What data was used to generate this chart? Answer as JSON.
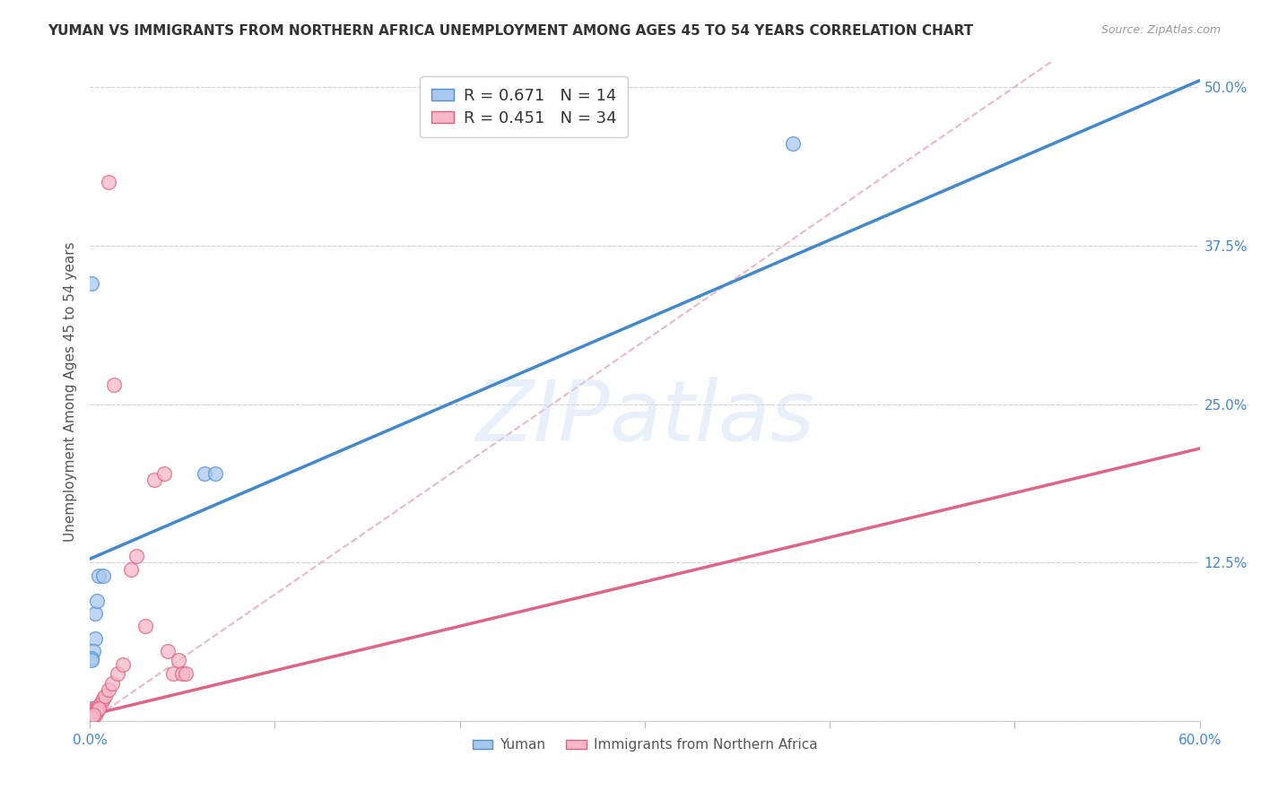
{
  "title": "YUMAN VS IMMIGRANTS FROM NORTHERN AFRICA UNEMPLOYMENT AMONG AGES 45 TO 54 YEARS CORRELATION CHART",
  "source": "Source: ZipAtlas.com",
  "ylabel": "Unemployment Among Ages 45 to 54 years",
  "xlim": [
    0.0,
    0.6
  ],
  "ylim": [
    0.0,
    0.52
  ],
  "xticks": [
    0.0,
    0.1,
    0.2,
    0.3,
    0.4,
    0.5,
    0.6
  ],
  "xticklabels": [
    "0.0%",
    "",
    "",
    "",
    "",
    "",
    "60.0%"
  ],
  "yticks": [
    0.0,
    0.125,
    0.25,
    0.375,
    0.5
  ],
  "yticklabels": [
    "",
    "12.5%",
    "25.0%",
    "37.5%",
    "50.0%"
  ],
  "grid_color": "#d0d0d0",
  "background_color": "#ffffff",
  "watermark": "ZIPatlas",
  "legend_r1": "R = 0.671",
  "legend_n1": "N = 14",
  "legend_r2": "R = 0.451",
  "legend_n2": "N = 34",
  "yuman_fill_color": "#a8c8f0",
  "immigrants_fill_color": "#f7b8c8",
  "yuman_edge_color": "#5090d0",
  "immigrants_edge_color": "#e06080",
  "yuman_line_color": "#4488cc",
  "immigrants_line_color": "#dd6688",
  "diagonal_color": "#e8b0c0",
  "tick_color": "#4488cc",
  "yuman_points": [
    [
      0.001,
      0.345
    ],
    [
      0.005,
      0.115
    ],
    [
      0.007,
      0.115
    ],
    [
      0.003,
      0.085
    ],
    [
      0.004,
      0.095
    ],
    [
      0.003,
      0.065
    ],
    [
      0.002,
      0.055
    ],
    [
      0.001,
      0.05
    ],
    [
      0.001,
      0.048
    ],
    [
      0.001,
      0.01
    ],
    [
      0.001,
      0.008
    ],
    [
      0.062,
      0.195
    ],
    [
      0.068,
      0.195
    ],
    [
      0.38,
      0.455
    ]
  ],
  "immigrants_points": [
    [
      0.01,
      0.425
    ],
    [
      0.013,
      0.265
    ],
    [
      0.001,
      0.005
    ],
    [
      0.002,
      0.008
    ],
    [
      0.003,
      0.008
    ],
    [
      0.001,
      0.005
    ],
    [
      0.001,
      0.003
    ],
    [
      0.002,
      0.005
    ],
    [
      0.003,
      0.008
    ],
    [
      0.003,
      0.01
    ],
    [
      0.004,
      0.01
    ],
    [
      0.005,
      0.012
    ],
    [
      0.006,
      0.015
    ],
    [
      0.007,
      0.018
    ],
    [
      0.008,
      0.02
    ],
    [
      0.01,
      0.025
    ],
    [
      0.012,
      0.03
    ],
    [
      0.015,
      0.038
    ],
    [
      0.018,
      0.045
    ],
    [
      0.003,
      0.005
    ],
    [
      0.004,
      0.008
    ],
    [
      0.005,
      0.01
    ],
    [
      0.001,
      0.003
    ],
    [
      0.002,
      0.005
    ],
    [
      0.022,
      0.12
    ],
    [
      0.025,
      0.13
    ],
    [
      0.035,
      0.19
    ],
    [
      0.04,
      0.195
    ],
    [
      0.042,
      0.055
    ],
    [
      0.045,
      0.038
    ],
    [
      0.05,
      0.038
    ],
    [
      0.03,
      0.075
    ],
    [
      0.048,
      0.048
    ],
    [
      0.052,
      0.038
    ]
  ],
  "yuman_line": {
    "x0": 0.0,
    "y0": 0.128,
    "x1": 0.6,
    "y1": 0.505
  },
  "immigrants_line": {
    "x0": 0.0,
    "y0": 0.005,
    "x1": 0.6,
    "y1": 0.215
  },
  "diagonal_line": {
    "x0": 0.0,
    "y0": 0.0,
    "x1": 0.52,
    "y1": 0.52
  }
}
